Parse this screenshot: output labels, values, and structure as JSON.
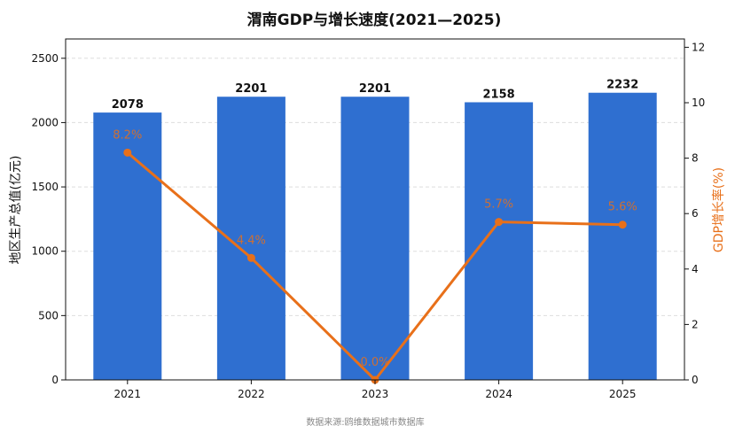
{
  "chart_data": {
    "type": "bar",
    "title": "渭南GDP与增长速度(2021—2025)",
    "categories": [
      "2021",
      "2022",
      "2023",
      "2024",
      "2025"
    ],
    "series": [
      {
        "name": "地区生产总值(亿元)",
        "type": "bar",
        "axis": "left",
        "values": [
          2078,
          2201,
          2201,
          2158,
          2232
        ],
        "labels": [
          "2078",
          "2201",
          "2201",
          "2158",
          "2232"
        ],
        "color": "#2f6fd0"
      },
      {
        "name": "GDP增长率(%)",
        "type": "line",
        "axis": "right",
        "values": [
          8.2,
          4.4,
          0.0,
          5.7,
          5.6
        ],
        "labels": [
          "8.2%",
          "4.4%",
          "0.0%",
          "5.7%",
          "5.6%"
        ],
        "color": "#e8701a"
      }
    ],
    "ylabel": "地区生产总值(亿元)",
    "y2label": "GDP增长率(%)",
    "ylim": [
      0,
      2650
    ],
    "y2lim": [
      0,
      12.3
    ],
    "yticks": [
      "0",
      "500",
      "1000",
      "1500",
      "2000",
      "2500"
    ],
    "y2ticks": [
      "0",
      "2",
      "4",
      "6",
      "8",
      "10",
      "12"
    ],
    "grid": true,
    "source": "数据来源:鸥维数据城市数据库"
  }
}
